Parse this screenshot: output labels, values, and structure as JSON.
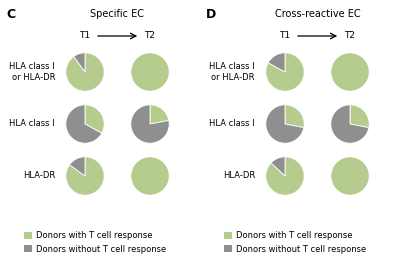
{
  "chart_data": [
    {
      "type": "pie",
      "title": "Specific EC",
      "annotations": [
        "C"
      ],
      "categories": [
        "Donors with T cell response",
        "Donors without T cell response"
      ],
      "colors": [
        "#b5cc8e",
        "#8f8f8f"
      ],
      "rows": [
        "HLA class I\nor HLA-DR",
        "HLA class I",
        "HLA-DR"
      ],
      "columns": [
        "T1",
        "T2"
      ],
      "values": [
        [
          [
            90,
            10
          ],
          [
            100,
            0
          ]
        ],
        [
          [
            33,
            67
          ],
          [
            22,
            78
          ]
        ],
        [
          [
            85,
            15
          ],
          [
            100,
            0
          ]
        ]
      ]
    },
    {
      "type": "pie",
      "title": "Cross-reactive EC",
      "annotations": [
        "D"
      ],
      "categories": [
        "Donors with T cell response",
        "Donors without T cell response"
      ],
      "colors": [
        "#b5cc8e",
        "#8f8f8f"
      ],
      "rows": [
        "HLA class I\nor HLA-DR",
        "HLA class I",
        "HLA-DR"
      ],
      "columns": [
        "T1",
        "T2"
      ],
      "values": [
        [
          [
            83,
            17
          ],
          [
            100,
            0
          ]
        ],
        [
          [
            28,
            72
          ],
          [
            28,
            72
          ]
        ],
        [
          [
            87,
            13
          ],
          [
            100,
            0
          ]
        ]
      ]
    }
  ]
}
